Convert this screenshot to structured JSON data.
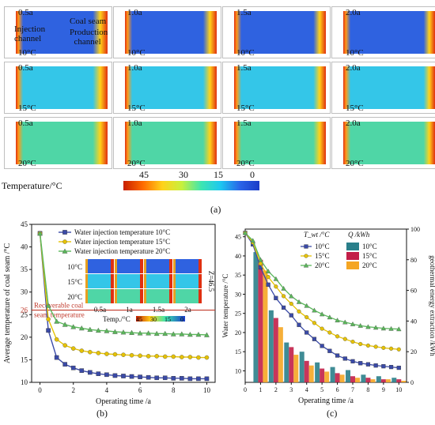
{
  "panel_a": {
    "label": "(a)",
    "rows": [
      {
        "temp": "10°C",
        "times": [
          "0.5a",
          "1.0a",
          "1.5a",
          "2.0a"
        ]
      },
      {
        "temp": "15°C",
        "times": [
          "0.5a",
          "1.0a",
          "1.5a",
          "2.0a"
        ]
      },
      {
        "temp": "20°C",
        "times": [
          "0.5a",
          "1.0a",
          "1.5a",
          "2.0a"
        ]
      }
    ],
    "annot_injection": "Injection channel",
    "annot_coal": "Coal seam",
    "annot_production": "Production channel",
    "colorbar_title": "Temperature/°C",
    "colorbar_ticks": [
      "45",
      "30",
      "15",
      "0"
    ],
    "colors": {
      "hot": "#e03010",
      "cold10": "#2f62e0",
      "cold15": "#34c6e8",
      "cold20": "#4fd6a6"
    }
  },
  "panel_b_label": "(b)",
  "panel_c_label": "(c)",
  "chart_data": [
    {
      "type": "line",
      "xlabel": "Operating time /a",
      "ylabel": "Average temperature of coal seam /°C",
      "xlim": [
        -0.5,
        10.5
      ],
      "ylim": [
        10,
        45
      ],
      "xticks": [
        0,
        2,
        4,
        6,
        8,
        10
      ],
      "yticks": [
        10,
        15,
        20,
        25,
        30,
        35,
        40,
        45
      ],
      "legend": "top-right",
      "series": [
        {
          "name": "Water injection temperature 10°C",
          "color": "#3a4aa8",
          "marker": "square",
          "x": [
            0,
            0.5,
            1,
            1.5,
            2,
            2.5,
            3,
            3.5,
            4,
            4.5,
            5,
            5.5,
            6,
            6.5,
            7,
            7.5,
            8,
            8.5,
            9,
            9.5,
            10
          ],
          "y": [
            43,
            21.5,
            15.5,
            14,
            13.2,
            12.6,
            12.2,
            11.9,
            11.7,
            11.5,
            11.4,
            11.3,
            11.2,
            11.1,
            11,
            11,
            10.9,
            10.9,
            10.8,
            10.8,
            10.8
          ]
        },
        {
          "name": "Water injection temperature 15°C",
          "color": "#e6c200",
          "marker": "circle",
          "x": [
            0,
            0.5,
            1,
            1.5,
            2,
            2.5,
            3,
            3.5,
            4,
            4.5,
            5,
            5.5,
            6,
            6.5,
            7,
            7.5,
            8,
            8.5,
            9,
            9.5,
            10
          ],
          "y": [
            43,
            24,
            19.5,
            18.2,
            17.5,
            17,
            16.7,
            16.5,
            16.3,
            16.2,
            16.1,
            16,
            15.9,
            15.8,
            15.8,
            15.7,
            15.7,
            15.6,
            15.6,
            15.5,
            15.5
          ]
        },
        {
          "name": "Water injection temperature 20°C",
          "color": "#5ab85a",
          "marker": "triangle",
          "x": [
            0,
            0.5,
            1,
            1.5,
            2,
            2.5,
            3,
            3.5,
            4,
            4.5,
            5,
            5.5,
            6,
            6.5,
            7,
            7.5,
            8,
            8.5,
            9,
            9.5,
            10
          ],
          "y": [
            43,
            27,
            23.5,
            22.8,
            22.3,
            22,
            21.7,
            21.5,
            21.4,
            21.2,
            21.1,
            21,
            20.9,
            20.9,
            20.8,
            20.8,
            20.7,
            20.7,
            20.6,
            20.6,
            20.5
          ]
        }
      ],
      "reference_line": {
        "y": 26,
        "label": "Recoverable coal seam temperature",
        "tick": "26",
        "color": "#c0392b"
      },
      "inset": {
        "rows": [
          "10°C",
          "15°C",
          "20°C"
        ],
        "cols": [
          "0.5a",
          "1a",
          "1.5a",
          "2a"
        ],
        "z_label": "Z=46.5",
        "colorbar_title": "Temp./°C",
        "colorbar_ticks": [
          "45",
          "30",
          "15",
          "0"
        ]
      }
    },
    {
      "type": "bar+line",
      "xlabel": "Operating time /a",
      "ylabel": "Water temperature /°C",
      "y2label": "geothermal energy extraction /kWh",
      "xlim": [
        0,
        10.5
      ],
      "ylim": [
        7,
        47
      ],
      "y2lim": [
        0,
        100
      ],
      "xticks": [
        0,
        1,
        2,
        3,
        4,
        5,
        6,
        7,
        8,
        9,
        10
      ],
      "yticks": [
        10,
        15,
        20,
        25,
        30,
        35,
        40,
        45
      ],
      "y2ticks": [
        0,
        20,
        40,
        60,
        80,
        100
      ],
      "legend": "top-right",
      "legend_title_left": "T_wt /°C",
      "legend_title_right": "Q /kWh",
      "line_series": [
        {
          "name": "10°C",
          "color": "#3a4aa8",
          "marker": "square",
          "x": [
            0,
            0.5,
            1,
            1.5,
            2,
            2.5,
            3,
            3.5,
            4,
            4.5,
            5,
            5.5,
            6,
            6.5,
            7,
            7.5,
            8,
            8.5,
            9,
            9.5,
            10
          ],
          "y": [
            46,
            43,
            37,
            32.5,
            29,
            26.5,
            24.5,
            22,
            20,
            18.3,
            16.5,
            15.2,
            14,
            13.2,
            12.5,
            12,
            11.7,
            11.4,
            11.2,
            11,
            10.8
          ]
        },
        {
          "name": "15°C",
          "color": "#e6c200",
          "marker": "circle",
          "x": [
            0,
            0.5,
            1,
            1.5,
            2,
            2.5,
            3,
            3.5,
            4,
            4.5,
            5,
            5.5,
            6,
            6.5,
            7,
            7.5,
            8,
            8.5,
            9,
            9.5,
            10
          ],
          "y": [
            46,
            43.5,
            38,
            34.5,
            32,
            29.5,
            27.5,
            25.5,
            24,
            22.5,
            21,
            20,
            19,
            18.3,
            17.6,
            17,
            16.6,
            16.3,
            16,
            15.8,
            15.6
          ]
        },
        {
          "name": "20°C",
          "color": "#5ab85a",
          "marker": "triangle",
          "x": [
            0,
            0.5,
            1,
            1.5,
            2,
            2.5,
            3,
            3.5,
            4,
            4.5,
            5,
            5.5,
            6,
            6.5,
            7,
            7.5,
            8,
            8.5,
            9,
            9.5,
            10
          ],
          "y": [
            46,
            44,
            39,
            36,
            34,
            31.5,
            29.5,
            28,
            27,
            25.8,
            24.8,
            24,
            23.2,
            22.7,
            22.2,
            21.8,
            21.5,
            21.3,
            21.1,
            21,
            20.9
          ]
        }
      ],
      "bar_series": [
        {
          "name": "10°C",
          "color": "#2a7f8a",
          "x": [
            1,
            2,
            3,
            4,
            5,
            6,
            7,
            8,
            9,
            10
          ],
          "values": [
            85,
            47,
            26,
            20,
            13,
            10,
            8,
            5,
            4,
            3
          ]
        },
        {
          "name": "15°C",
          "color": "#c21f48",
          "x": [
            1,
            2,
            3,
            4,
            5,
            6,
            7,
            8,
            9,
            10
          ],
          "values": [
            80,
            42,
            23,
            14,
            9,
            6,
            4,
            3,
            2,
            2
          ]
        },
        {
          "name": "20°C",
          "color": "#f5a623",
          "x": [
            1,
            2,
            3,
            4,
            5,
            6,
            7,
            8,
            9,
            10
          ],
          "values": [
            73,
            36,
            18,
            11,
            7,
            5,
            3,
            2,
            2,
            1
          ]
        }
      ]
    }
  ]
}
